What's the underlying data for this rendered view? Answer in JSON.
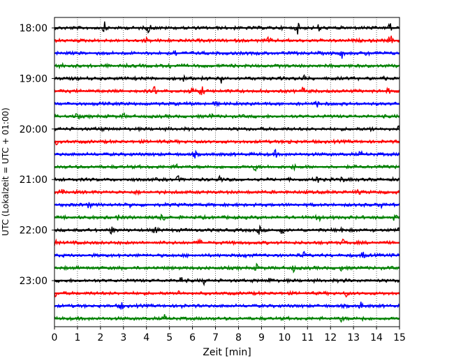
{
  "chart_data": {
    "type": "line",
    "title": "",
    "xlabel": "Zeit  [min]",
    "ylabel": "UTC (Lokalzeit = UTC + 01:00)",
    "xlim": [
      0,
      15
    ],
    "x_ticks": [
      "0",
      "1",
      "2",
      "3",
      "4",
      "5",
      "6",
      "7",
      "8",
      "9",
      "10",
      "11",
      "12",
      "13",
      "14",
      "15"
    ],
    "y_tick_labels": [
      "18:00",
      "19:00",
      "20:00",
      "21:00",
      "22:00",
      "23:00"
    ],
    "grid": "vertical dotted",
    "trace_colors": [
      "#000000",
      "#ff0000",
      "#0000ff",
      "#008000"
    ],
    "traces": [
      {
        "start": "18:00",
        "color": "#000000",
        "spikes": [
          [
            2.2,
            1.0
          ],
          [
            4.1,
            0.9
          ],
          [
            10.55,
            1.0
          ],
          [
            11.5,
            0.5
          ],
          [
            14.55,
            1.1
          ]
        ]
      },
      {
        "start": "18:15",
        "color": "#ff0000",
        "spikes": [
          [
            9.3,
            0.6
          ],
          [
            14.6,
            0.9
          ],
          [
            4.0,
            0.3
          ]
        ]
      },
      {
        "start": "18:30",
        "color": "#0000ff",
        "spikes": [
          [
            5.2,
            0.9
          ],
          [
            12.5,
            0.7
          ],
          [
            13.6,
            0.4
          ]
        ]
      },
      {
        "start": "18:45",
        "color": "#008000",
        "spikes": [
          [
            0.3,
            0.4
          ],
          [
            5.0,
            0.3
          ]
        ]
      },
      {
        "start": "19:00",
        "color": "#000000",
        "spikes": [
          [
            5.6,
            0.6
          ],
          [
            7.25,
            0.8
          ],
          [
            10.85,
            0.7
          ],
          [
            14.3,
            0.3
          ]
        ]
      },
      {
        "start": "19:15",
        "color": "#ff0000",
        "spikes": [
          [
            4.35,
            0.9
          ],
          [
            5.95,
            0.8
          ],
          [
            6.4,
            0.8
          ],
          [
            10.8,
            0.7
          ],
          [
            14.5,
            0.4
          ]
        ]
      },
      {
        "start": "19:30",
        "color": "#0000ff",
        "spikes": [
          [
            11.45,
            0.6
          ],
          [
            7.0,
            0.3
          ]
        ]
      },
      {
        "start": "19:45",
        "color": "#008000",
        "spikes": [
          [
            1.0,
            0.5
          ],
          [
            3.0,
            0.4
          ],
          [
            6.8,
            0.3
          ]
        ]
      },
      {
        "start": "20:00",
        "color": "#000000",
        "spikes": [
          [
            2.0,
            0.4
          ],
          [
            13.8,
            0.4
          ],
          [
            15.0,
            0.5
          ]
        ]
      },
      {
        "start": "20:15",
        "color": "#ff0000",
        "spikes": [
          [
            0.05,
            0.4
          ],
          [
            4.6,
            0.3
          ],
          [
            10.2,
            0.3
          ]
        ]
      },
      {
        "start": "20:30",
        "color": "#0000ff",
        "spikes": [
          [
            6.1,
            0.4
          ],
          [
            9.6,
            0.5
          ],
          [
            13.3,
            0.3
          ]
        ]
      },
      {
        "start": "20:45",
        "color": "#008000",
        "spikes": [
          [
            5.3,
            0.5
          ],
          [
            8.75,
            0.7
          ],
          [
            10.4,
            0.4
          ]
        ]
      },
      {
        "start": "21:00",
        "color": "#000000",
        "spikes": [
          [
            5.4,
            0.5
          ],
          [
            7.2,
            0.7
          ],
          [
            11.45,
            0.9
          ],
          [
            12.5,
            0.4
          ]
        ]
      },
      {
        "start": "21:15",
        "color": "#ff0000",
        "spikes": [
          [
            0.3,
            0.4
          ],
          [
            3.6,
            0.3
          ],
          [
            13.2,
            0.3
          ]
        ]
      },
      {
        "start": "21:30",
        "color": "#0000ff",
        "spikes": [
          [
            1.5,
            0.5
          ],
          [
            3.3,
            0.3
          ],
          [
            14.2,
            0.5
          ]
        ]
      },
      {
        "start": "21:45",
        "color": "#008000",
        "spikes": [
          [
            2.8,
            0.5
          ],
          [
            4.7,
            0.7
          ],
          [
            11.45,
            0.9
          ],
          [
            14.8,
            0.5
          ]
        ]
      },
      {
        "start": "22:00",
        "color": "#000000",
        "spikes": [
          [
            2.5,
            0.7
          ],
          [
            4.4,
            0.6
          ],
          [
            8.9,
            0.6
          ],
          [
            9.9,
            0.6
          ],
          [
            12.5,
            0.6
          ],
          [
            15.0,
            0.6
          ]
        ]
      },
      {
        "start": "22:15",
        "color": "#ff0000",
        "spikes": [
          [
            0.0,
            0.5
          ],
          [
            6.3,
            0.4
          ],
          [
            12.6,
            0.7
          ]
        ]
      },
      {
        "start": "22:30",
        "color": "#0000ff",
        "spikes": [
          [
            10.8,
            0.7
          ],
          [
            13.4,
            0.6
          ],
          [
            8.3,
            0.4
          ]
        ]
      },
      {
        "start": "22:45",
        "color": "#008000",
        "spikes": [
          [
            8.8,
            0.5
          ],
          [
            10.4,
            0.5
          ],
          [
            12.5,
            0.4
          ]
        ]
      },
      {
        "start": "23:00",
        "color": "#000000",
        "spikes": [
          [
            5.5,
            0.7
          ],
          [
            9.4,
            0.6
          ],
          [
            12.7,
            0.5
          ],
          [
            6.5,
            0.4
          ]
        ]
      },
      {
        "start": "23:15",
        "color": "#ff0000",
        "spikes": [
          [
            0.0,
            0.8
          ],
          [
            5.4,
            0.4
          ],
          [
            12.7,
            0.5
          ]
        ]
      },
      {
        "start": "23:30",
        "color": "#0000ff",
        "spikes": [
          [
            2.9,
            0.7
          ],
          [
            13.3,
            0.6
          ],
          [
            5.5,
            0.3
          ]
        ]
      },
      {
        "start": "23:45",
        "color": "#008000",
        "spikes": [
          [
            4.8,
            0.5
          ],
          [
            12.5,
            0.5
          ],
          [
            13.4,
            0.4
          ]
        ]
      }
    ]
  }
}
